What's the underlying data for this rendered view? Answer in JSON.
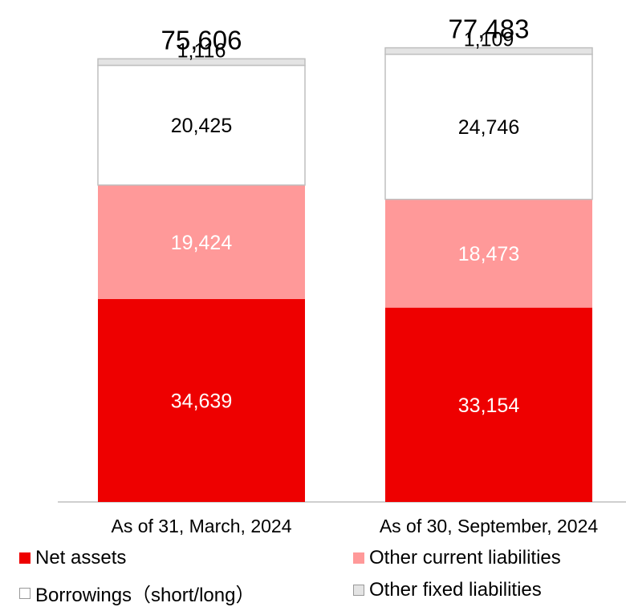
{
  "chart_data": {
    "type": "bar",
    "stacked": true,
    "categories": [
      "As of 31, March, 2024",
      "As of 30, September, 2024"
    ],
    "totals": [
      "75,606",
      "77,483"
    ],
    "series": [
      {
        "name": "Net assets",
        "values": [
          34639,
          33154
        ],
        "labels": [
          "34,639",
          "33,154"
        ],
        "color": "#ee0000",
        "label_color": "#ffffff"
      },
      {
        "name": "Other current liabilities",
        "values": [
          19424,
          18473
        ],
        "labels": [
          "19,424",
          "18,473"
        ],
        "color": "#ff9999",
        "label_color": "#ffffff"
      },
      {
        "name": "Borrowings（short/long）",
        "values": [
          20425,
          24746
        ],
        "labels": [
          "20,425",
          "24,746"
        ],
        "color": "#ffffff",
        "label_color": "#000000"
      },
      {
        "name": "Other fixed liabilities",
        "values": [
          1116,
          1109
        ],
        "labels": [
          "1,116",
          "1,109"
        ],
        "color": "#e4e4e4",
        "label_color": "#000000"
      }
    ],
    "legend": {
      "position": "bottom"
    },
    "grid": false
  }
}
